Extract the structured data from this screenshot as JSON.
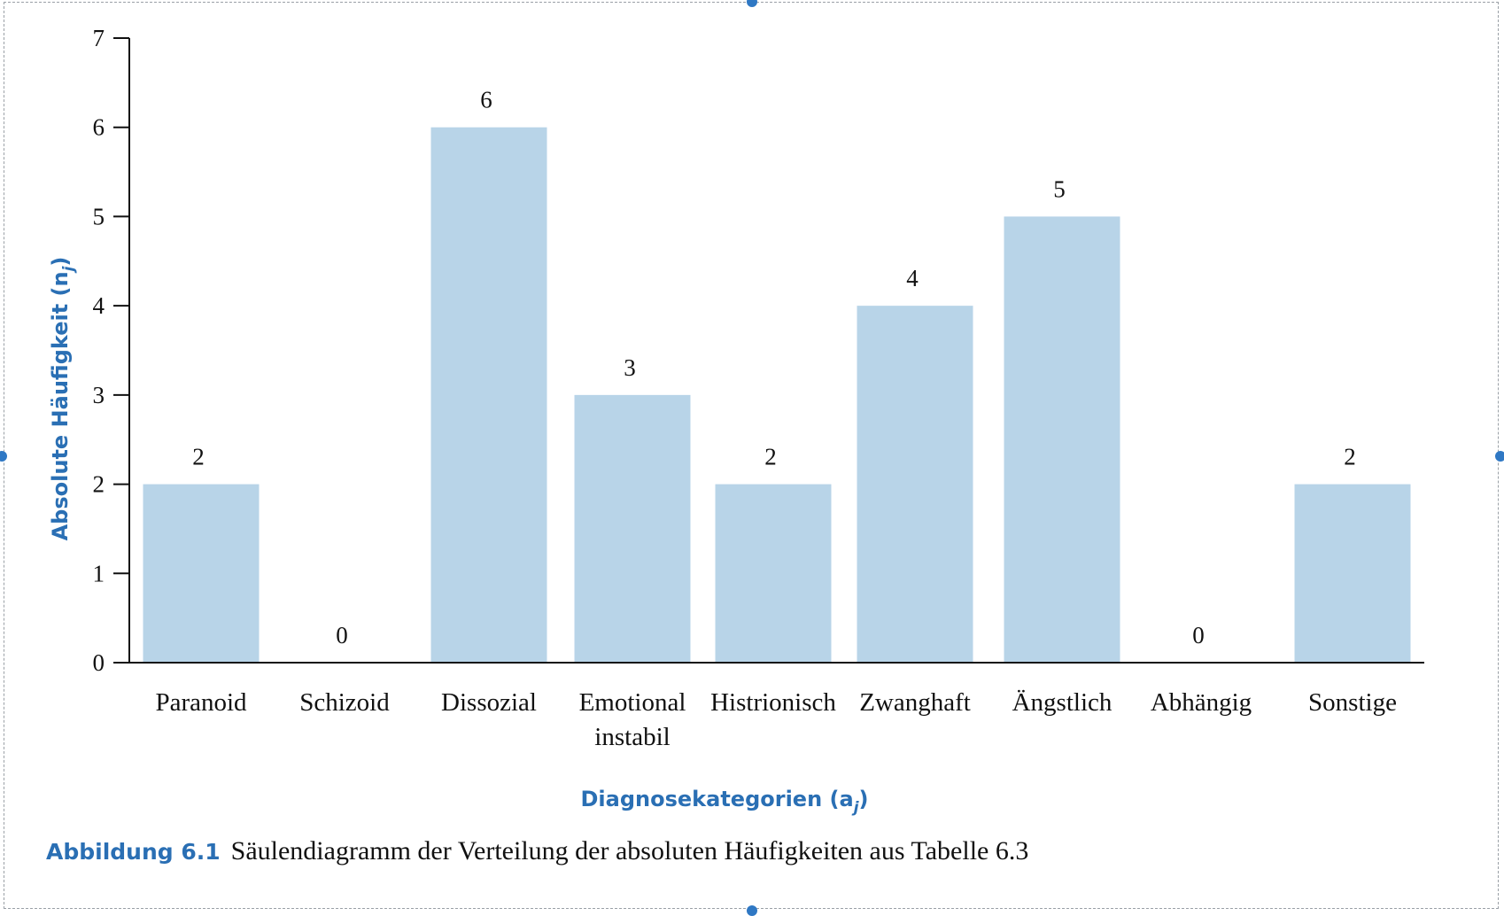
{
  "chart_data": {
    "type": "bar",
    "categories": [
      "Paranoid",
      "Schizoid",
      "Dissozial",
      "Emotional instabil",
      "Histrionisch",
      "Zwanghaft",
      "Ängstlich",
      "Abhängig",
      "Sonstige"
    ],
    "category_lines": [
      [
        "Paranoid"
      ],
      [
        "Schizoid"
      ],
      [
        "Dissozial"
      ],
      [
        "Emotional",
        "instabil"
      ],
      [
        "Histrionisch"
      ],
      [
        "Zwanghaft"
      ],
      [
        "Ängstlich"
      ],
      [
        "Abhängig"
      ],
      [
        "Sonstige"
      ]
    ],
    "values": [
      2,
      0,
      6,
      3,
      2,
      4,
      5,
      0,
      2
    ],
    "ylim": [
      0,
      7
    ],
    "yticks": [
      0,
      1,
      2,
      3,
      4,
      5,
      6,
      7
    ],
    "xlabel": "Diagnosekategorien (a",
    "xlabel_sub": "j",
    "xlabel_end": ")",
    "ylabel": "Absolute Häufigkeit (n",
    "ylabel_sub": "j",
    "ylabel_end": ")",
    "data_labels": true,
    "grid": false,
    "bar_color": "#b8d4e8",
    "axis_label_color": "#2a6fb4"
  },
  "caption": {
    "label": "Abbildung 6.1",
    "text": "Säulendiagramm der Verteilung der absoluten Häufigkeiten aus Tabelle 6.3"
  }
}
